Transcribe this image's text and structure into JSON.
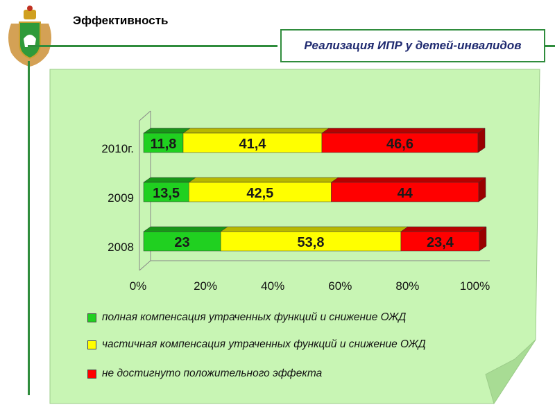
{
  "header": {
    "section_title": "Эффективность",
    "slide_title": "Реализация ИПР у детей-инвалидов"
  },
  "colors": {
    "accent_green": "#2f8c3c",
    "panel_fill": "#c8f5b4",
    "series_green": "#20d020",
    "series_yellow": "#ffff00",
    "series_red": "#ff0000",
    "title_blue": "#1f2a70"
  },
  "chart_data": {
    "type": "bar",
    "orientation": "horizontal",
    "stacked": "percent",
    "categories": [
      "2010г.",
      "2009",
      "2008"
    ],
    "series": [
      {
        "name": "полная компенсация утраченных функций и снижение ОЖД",
        "values": [
          11.8,
          13.5,
          23
        ],
        "labels": [
          "11,8",
          "13,5",
          "23"
        ],
        "color": "#20d020"
      },
      {
        "name": "частичная компенсация утраченных функций и снижение ОЖД",
        "values": [
          41.4,
          42.5,
          53.8
        ],
        "labels": [
          "41,4",
          "42,5",
          "53,8"
        ],
        "color": "#ffff00"
      },
      {
        "name": "не достигнуто положительного эффекта",
        "values": [
          46.6,
          44,
          23.4
        ],
        "labels": [
          "46,6",
          "44",
          "23,4"
        ],
        "color": "#ff0000"
      }
    ],
    "x_ticks": [
      "0%",
      "20%",
      "40%",
      "60%",
      "80%",
      "100%"
    ],
    "xlim": [
      0,
      100
    ],
    "legend_position": "bottom",
    "grid": false
  }
}
